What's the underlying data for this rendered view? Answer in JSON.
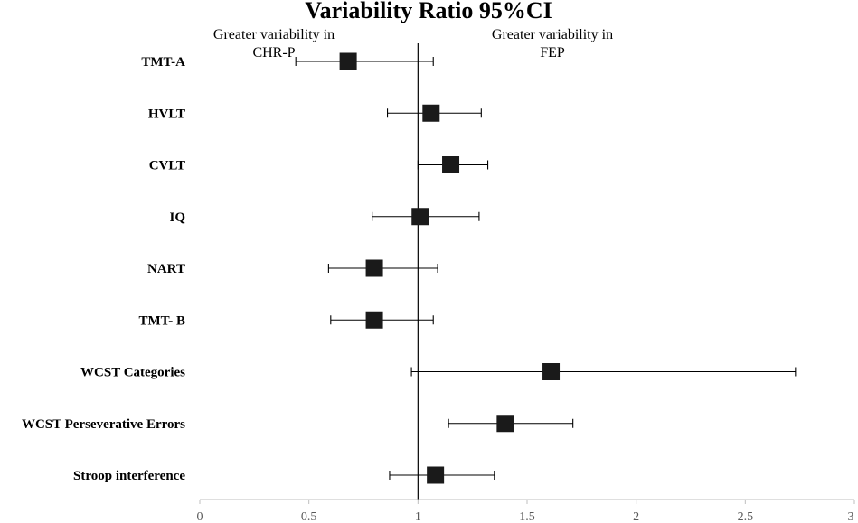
{
  "chart_data": {
    "type": "scatter",
    "title": "Variability Ratio 95%CI",
    "xlabel": "",
    "ylabel": "",
    "xlim": [
      0,
      3
    ],
    "xticks": [
      "0",
      "0.5",
      "1",
      "1.5",
      "2",
      "2.5",
      "3"
    ],
    "reference_line": 1,
    "annotations": {
      "left_line1": "Greater variability in",
      "left_line2": "CHR-P",
      "right_line1": "Greater variability in",
      "right_line2": "FEP"
    },
    "rows": [
      {
        "label": "TMT-A",
        "estimate": 0.68,
        "ci_low": 0.44,
        "ci_high": 1.07
      },
      {
        "label": "HVLT",
        "estimate": 1.06,
        "ci_low": 0.86,
        "ci_high": 1.29
      },
      {
        "label": "CVLT",
        "estimate": 1.15,
        "ci_low": 1.0,
        "ci_high": 1.32
      },
      {
        "label": "IQ",
        "estimate": 1.01,
        "ci_low": 0.79,
        "ci_high": 1.28
      },
      {
        "label": "NART",
        "estimate": 0.8,
        "ci_low": 0.59,
        "ci_high": 1.09
      },
      {
        "label": "TMT- B",
        "estimate": 0.8,
        "ci_low": 0.6,
        "ci_high": 1.07
      },
      {
        "label": "WCST Categories",
        "estimate": 1.61,
        "ci_low": 0.97,
        "ci_high": 2.73
      },
      {
        "label": "WCST Perseverative Errors",
        "estimate": 1.4,
        "ci_low": 1.14,
        "ci_high": 1.71
      },
      {
        "label": "Stroop interference",
        "estimate": 1.08,
        "ci_low": 0.87,
        "ci_high": 1.35
      }
    ],
    "marker_color": "#1a1a1a",
    "line_color": "#000000",
    "axis_color": "#bfbfbf"
  }
}
